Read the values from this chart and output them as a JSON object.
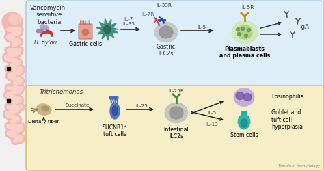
{
  "bg_color": "#f0f0f0",
  "top_box_color": "#ddeef8",
  "top_box_edge": "#a8c8e0",
  "bottom_box_color": "#f5eec8",
  "bottom_box_edge": "#d0b860",
  "intestine_color": "#f0b8b0",
  "intestine_dark": "#e89090",
  "sq_color": "#222222",
  "small_font": 6.2,
  "tiny_font": 5.2,
  "arrow_color": "#222222",
  "top_panel": {
    "label_vancomycin": "Vancomycin-\nsensitive\nbacteria",
    "label_hpylori": "H. pylori",
    "label_gastric_cells": "Gastric cells",
    "label_il7_il33": "IL-7\nIL-33",
    "label_il33r": "IL-33R",
    "label_il7r": "IL-7R",
    "label_gastric_ilc2": "Gastric\nILC2s",
    "label_il5": "IL-5",
    "label_il5r": "IL-5R",
    "label_plasmablasts": "Plasmablasts\nand plasma cells",
    "label_iga": "IgA"
  },
  "bottom_panel": {
    "label_tritrichomonas": "Tritrichomonas",
    "label_succinate": "Succinate",
    "label_il25": "IL-25",
    "label_sucnr1": "SUCNR1⁺\ntuft cells",
    "label_il25r": "IL-25R",
    "label_intestinal_ilc2": "Intestinal\nILC2s",
    "label_il5": "IL-5",
    "label_il13": "IL-13",
    "label_eosinophilia": "Eosinophilia",
    "label_goblet": "Goblet and\ntuft cell\nhyperplasia",
    "label_stem": "Stem cells",
    "label_dietary": "Dietary fiber"
  },
  "watermark": "Trends in Immunology"
}
